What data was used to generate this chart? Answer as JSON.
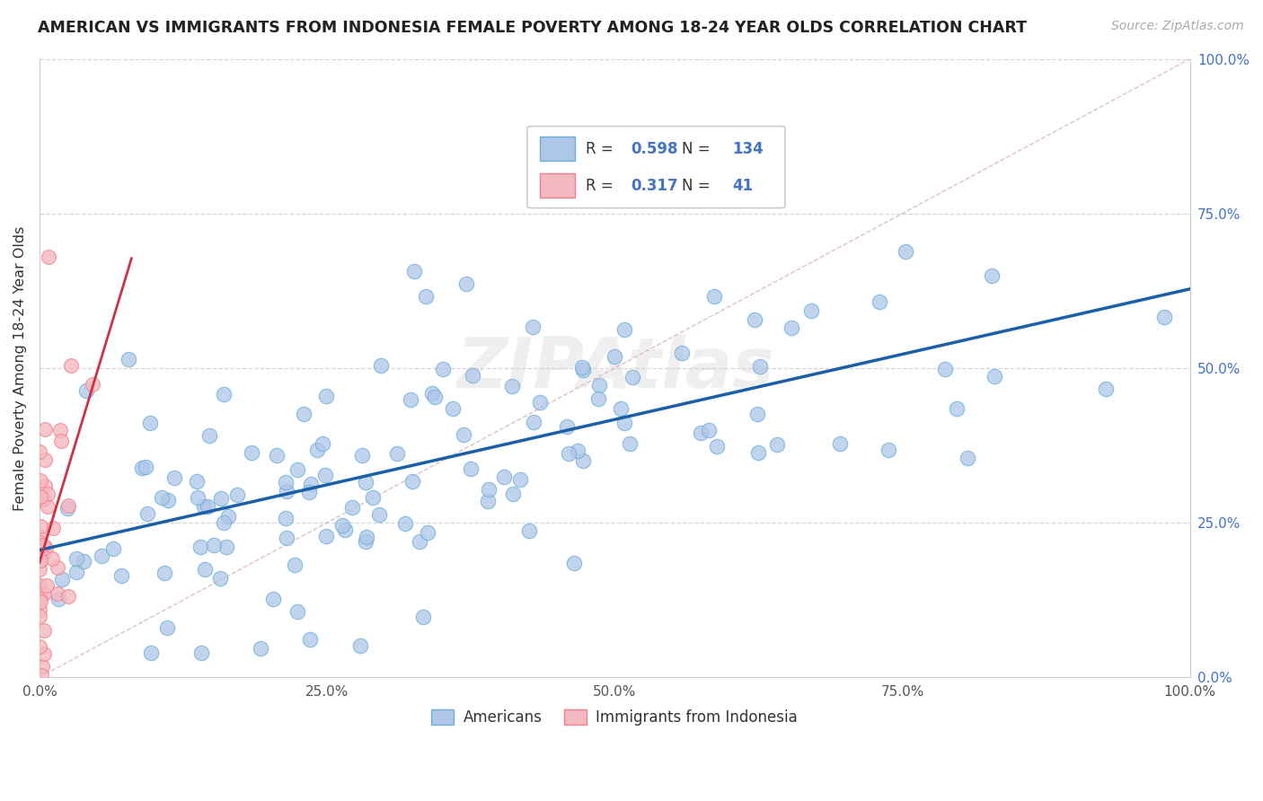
{
  "title": "AMERICAN VS IMMIGRANTS FROM INDONESIA FEMALE POVERTY AMONG 18-24 YEAR OLDS CORRELATION CHART",
  "source": "Source: ZipAtlas.com",
  "ylabel": "Female Poverty Among 18-24 Year Olds",
  "xlim": [
    0,
    1
  ],
  "ylim": [
    0,
    1
  ],
  "xtick_labels": [
    "0.0%",
    "25.0%",
    "50.0%",
    "75.0%",
    "100.0%"
  ],
  "ytick_labels": [
    "0.0%",
    "25.0%",
    "50.0%",
    "75.0%",
    "100.0%"
  ],
  "R_blue": 0.598,
  "N_blue": 134,
  "R_pink": 0.317,
  "N_pink": 41,
  "legend_labels": [
    "Americans",
    "Immigrants from Indonesia"
  ],
  "blue_color": "#aec6e8",
  "blue_edge": "#6aaed6",
  "pink_color": "#f4b8c1",
  "pink_edge": "#f47f8a",
  "trend_blue": "#1a5fa8",
  "trend_pink": "#cc3344",
  "ref_line_color": "#ddbbbb",
  "watermark": "ZIPAtlas",
  "background": "#ffffff",
  "tick_color": "#4472c4",
  "label_color": "#333333"
}
